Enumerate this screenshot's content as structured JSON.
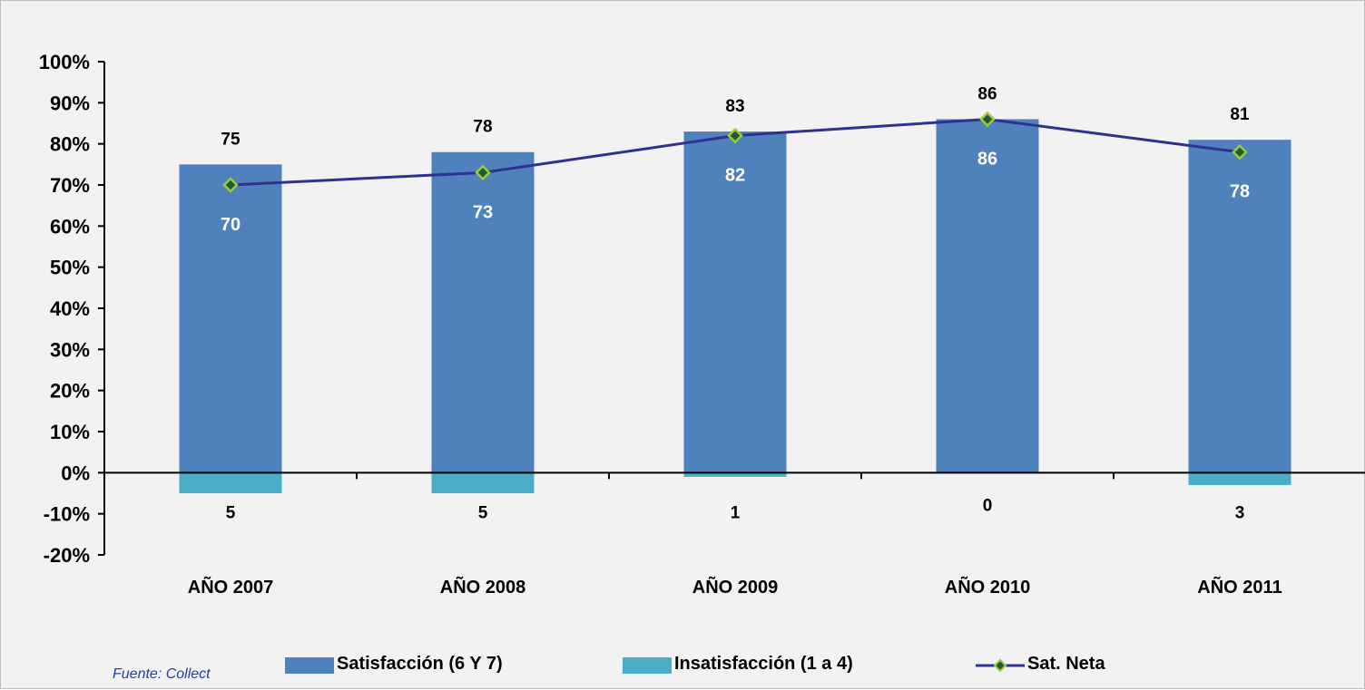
{
  "chart_data": {
    "type": "bar",
    "categories": [
      "AÑO 2007",
      "AÑO 2008",
      "AÑO 2009",
      "AÑO 2010",
      "AÑO 2011"
    ],
    "series": [
      {
        "name": "Satisfacción (6 Y 7)",
        "kind": "bar",
        "values": [
          75,
          78,
          83,
          86,
          81
        ],
        "labels": [
          "75",
          "78",
          "83",
          "86",
          "81"
        ],
        "color": "#4f81bd"
      },
      {
        "name": "Insatisfacción (1 a 4)",
        "kind": "bar",
        "values": [
          -5,
          -5,
          -1,
          0,
          -3
        ],
        "labels": [
          "5",
          "5",
          "1",
          "0",
          "3"
        ],
        "color": "#4bacc6"
      },
      {
        "name": "Sat. Neta",
        "kind": "line",
        "values": [
          70,
          73,
          82,
          86,
          78
        ],
        "labels": [
          "70",
          "73",
          "82",
          "86",
          "78"
        ],
        "color": "#2e3192",
        "marker_color": "#9acd32"
      }
    ],
    "y_ticks": [
      "100%",
      "90%",
      "80%",
      "70%",
      "60%",
      "50%",
      "40%",
      "30%",
      "20%",
      "10%",
      "0%",
      "-10%",
      "-20%"
    ],
    "ylim": [
      -20,
      100
    ],
    "grid": false,
    "legend_position": "bottom"
  },
  "source_note": "Fuente: Collect"
}
